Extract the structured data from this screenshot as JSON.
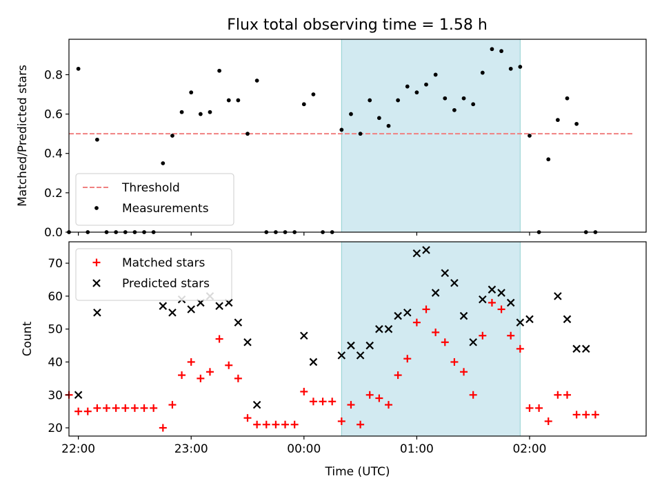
{
  "chart_data": [
    {
      "type": "scatter",
      "title": "Flux total observing time = 1.58 h",
      "xlabel": "",
      "ylabel": "Matched/Predicted stars",
      "xlim": [
        "21:55",
        "03:02"
      ],
      "ylim": [
        0,
        0.98
      ],
      "yticks": [
        "0.0",
        "0.2",
        "0.4",
        "0.6",
        "0.8"
      ],
      "grid": false,
      "legend_position": "lower-left",
      "shaded_x_range": [
        "00:20",
        "01:55"
      ],
      "shade_color": "#add8e6",
      "threshold": {
        "name": "Threshold",
        "y": 0.5,
        "x": [
          "21:55",
          "02:55"
        ],
        "color": "#f08080",
        "style": "dashed"
      },
      "series": [
        {
          "name": "Measurements",
          "color": "#000000",
          "marker": "dot",
          "x": [
            "21:55",
            "22:00",
            "22:05",
            "22:10",
            "22:15",
            "22:20",
            "22:25",
            "22:30",
            "22:35",
            "22:40",
            "22:45",
            "22:50",
            "22:55",
            "23:00",
            "23:05",
            "23:10",
            "23:15",
            "23:20",
            "23:25",
            "23:30",
            "23:35",
            "23:40",
            "23:45",
            "23:50",
            "23:55",
            "00:00",
            "00:05",
            "00:10",
            "00:15",
            "00:20",
            "00:25",
            "00:30",
            "00:35",
            "00:40",
            "00:45",
            "00:50",
            "00:55",
            "01:00",
            "01:05",
            "01:10",
            "01:15",
            "01:20",
            "01:25",
            "01:30",
            "01:35",
            "01:40",
            "01:45",
            "01:50",
            "01:55",
            "02:00",
            "02:05",
            "02:10",
            "02:15",
            "02:20",
            "02:25",
            "02:30",
            "02:35"
          ],
          "y": [
            0.0,
            0.83,
            0.0,
            0.47,
            0.0,
            0.0,
            0.0,
            0.0,
            0.0,
            0.0,
            0.35,
            0.49,
            0.61,
            0.71,
            0.6,
            0.61,
            0.82,
            0.67,
            0.67,
            0.5,
            0.77,
            0.0,
            0.0,
            0.0,
            0.0,
            0.65,
            0.7,
            0.0,
            0.0,
            0.52,
            0.6,
            0.5,
            0.67,
            0.58,
            0.54,
            0.67,
            0.74,
            0.71,
            0.75,
            0.8,
            0.68,
            0.62,
            0.68,
            0.65,
            0.81,
            0.93,
            0.92,
            0.83,
            0.84,
            0.49,
            0.0,
            0.37,
            0.57,
            0.68,
            0.55,
            0.0,
            0.0
          ]
        }
      ]
    },
    {
      "type": "scatter",
      "xlabel": "Time (UTC)",
      "ylabel": "Count",
      "xticks": [
        "22:00",
        "23:00",
        "00:00",
        "01:00",
        "02:00"
      ],
      "xlim": [
        "21:55",
        "03:02"
      ],
      "ylim": [
        17.5,
        76.5
      ],
      "yticks": [
        "20",
        "30",
        "40",
        "50",
        "60",
        "70"
      ],
      "grid": false,
      "legend_position": "upper-left",
      "shaded_x_range": [
        "00:20",
        "01:55"
      ],
      "shade_color": "#add8e6",
      "series": [
        {
          "name": "Matched stars",
          "color": "#ff0000",
          "marker": "plus",
          "x": [
            "21:55",
            "22:00",
            "22:05",
            "22:10",
            "22:15",
            "22:20",
            "22:25",
            "22:30",
            "22:35",
            "22:40",
            "22:45",
            "22:50",
            "22:55",
            "23:00",
            "23:05",
            "23:10",
            "23:15",
            "23:20",
            "23:25",
            "23:30",
            "23:35",
            "23:40",
            "23:45",
            "23:50",
            "23:55",
            "00:00",
            "00:05",
            "00:10",
            "00:15",
            "00:20",
            "00:25",
            "00:30",
            "00:35",
            "00:40",
            "00:45",
            "00:50",
            "00:55",
            "01:00",
            "01:05",
            "01:10",
            "01:15",
            "01:20",
            "01:25",
            "01:30",
            "01:35",
            "01:40",
            "01:45",
            "01:50",
            "01:55",
            "02:00",
            "02:05",
            "02:10",
            "02:15",
            "02:20",
            "02:25",
            "02:30",
            "02:35"
          ],
          "y": [
            30,
            25,
            25,
            26,
            26,
            26,
            26,
            26,
            26,
            26,
            20,
            27,
            36,
            40,
            35,
            37,
            47,
            39,
            35,
            23,
            21,
            21,
            21,
            21,
            21,
            31,
            28,
            28,
            28,
            22,
            27,
            21,
            30,
            29,
            27,
            36,
            41,
            52,
            56,
            49,
            46,
            40,
            37,
            30,
            48,
            58,
            56,
            48,
            44,
            26,
            26,
            22,
            30,
            30,
            24,
            24,
            24
          ]
        },
        {
          "name": "Predicted stars",
          "color": "#000000",
          "marker": "x",
          "x": [
            "22:00",
            "22:10",
            "22:45",
            "22:50",
            "22:55",
            "23:00",
            "23:05",
            "23:10",
            "23:15",
            "23:20",
            "23:25",
            "23:30",
            "23:35",
            "00:00",
            "00:05",
            "00:20",
            "00:25",
            "00:30",
            "00:35",
            "00:40",
            "00:45",
            "00:50",
            "00:55",
            "01:00",
            "01:05",
            "01:10",
            "01:15",
            "01:20",
            "01:25",
            "01:30",
            "01:35",
            "01:40",
            "01:45",
            "01:50",
            "01:55",
            "02:00",
            "02:15",
            "02:20",
            "02:25",
            "02:30"
          ],
          "y": [
            30,
            55,
            57,
            55,
            59,
            56,
            58,
            60,
            57,
            58,
            52,
            46,
            27,
            48,
            40,
            42,
            45,
            42,
            45,
            50,
            50,
            54,
            55,
            73,
            74,
            61,
            67,
            64,
            54,
            46,
            59,
            62,
            61,
            58,
            52,
            53,
            60,
            53,
            44,
            44
          ]
        }
      ]
    }
  ]
}
